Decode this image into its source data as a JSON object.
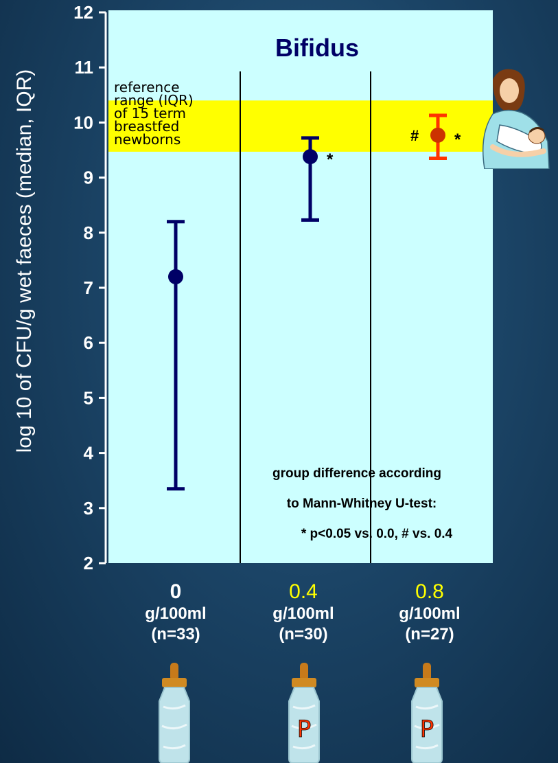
{
  "chart_data": {
    "type": "scatter",
    "title": "Bifidus",
    "ylabel": "log 10 of CFU/g wet faeces (median, IQR)",
    "ylim": [
      2,
      12
    ],
    "yticks": [
      "2",
      "3",
      "4",
      "5",
      "6",
      "7",
      "8",
      "9",
      "10",
      "11",
      "12"
    ],
    "categories": [
      "0",
      "0.4",
      "0.8"
    ],
    "points": [
      {
        "x": "0",
        "median": 7.2,
        "q1": 3.35,
        "q3": 8.2,
        "marker": ""
      },
      {
        "x": "0.4",
        "median": 9.38,
        "q1": 8.23,
        "q3": 9.72,
        "marker": "*"
      },
      {
        "x": "0.8",
        "median": 9.77,
        "q1": 9.35,
        "q3": 10.13,
        "marker": "*",
        "marker2": "#"
      }
    ],
    "reference_band": {
      "low": 9.47,
      "high": 10.4,
      "label_lines": [
        "reference",
        "range (IQR)",
        "of 15 term",
        "breastfed",
        "newborns"
      ]
    },
    "annotation_lines": [
      "group difference according",
      "to Mann-Whitney U-test:",
      "* p<0.05 vs. 0.0, # vs. 0.4"
    ]
  },
  "xcats": [
    {
      "num": "0",
      "unit": "g/100ml",
      "n": "(n=33)"
    },
    {
      "num": "0.4",
      "unit": "g/100ml",
      "n": "(n=30)"
    },
    {
      "num": "0.8",
      "unit": "g/100ml",
      "n": "(n=27)"
    }
  ],
  "bottle_labels": [
    "",
    "P",
    "P"
  ],
  "colors": {
    "plot_bg": "#ccffff",
    "band": "#ffff00",
    "navy": "#000066",
    "orange_marker": "#cc3300",
    "orange_bar": "#ff3300",
    "num_first": "#ffffff",
    "num_other": "#ffff00",
    "bottle_letter": "#ff3300"
  }
}
